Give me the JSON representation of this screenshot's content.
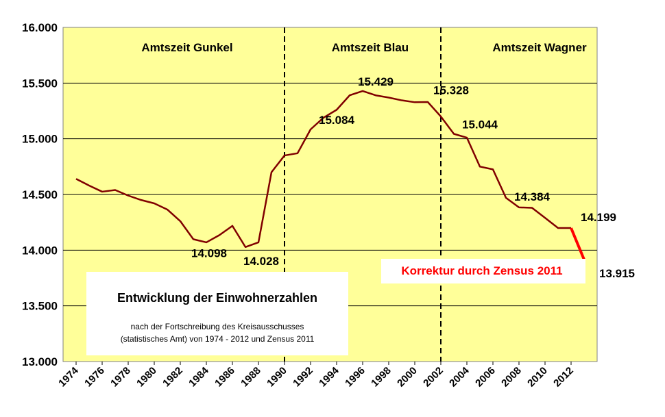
{
  "chart_data": {
    "type": "line",
    "title": "Entwicklung der Einwohnerzahlen",
    "subtitle_lines": [
      "nach der Fortschreibung des Kreisausschusses",
      "(statistisches Amt) von 1974 - 2012 und Zensus 2011"
    ],
    "xlabel": "",
    "ylabel": "",
    "ylim": [
      13000,
      16000
    ],
    "xlim": [
      1973,
      2014
    ],
    "y_ticks": [
      13000,
      13500,
      14000,
      14500,
      15000,
      15500,
      16000
    ],
    "y_tick_labels": [
      "13.000",
      "13.500",
      "14.000",
      "14.500",
      "15.000",
      "15.500",
      "16.000"
    ],
    "x_ticks": [
      1974,
      1976,
      1978,
      1980,
      1982,
      1984,
      1986,
      1988,
      1990,
      1992,
      1994,
      1996,
      1998,
      2000,
      2002,
      2004,
      2006,
      2008,
      2010,
      2012
    ],
    "x_tick_labels": [
      "1974",
      "1976",
      "1978",
      "1980",
      "1982",
      "1984",
      "1986",
      "1988",
      "1990",
      "1992",
      "1994",
      "1996",
      "1998",
      "2000",
      "2002",
      "2004",
      "2006",
      "2008",
      "2010",
      "2012"
    ],
    "grid": "horizontal",
    "plot_background": "#ffff99",
    "series": [
      {
        "color": "#800000",
        "x": [
          1974,
          1975,
          1976,
          1977,
          1978,
          1979,
          1980,
          1981,
          1982,
          1983,
          1984,
          1985,
          1986,
          1987,
          1988,
          1989,
          1990,
          1991,
          1992,
          1993,
          1994,
          1995,
          1996,
          1997,
          1998,
          1999,
          2000,
          2001,
          2002,
          2003,
          2004,
          2005,
          2006,
          2007,
          2008,
          2009,
          2010,
          2011,
          2012,
          2013
        ],
        "y": [
          14640,
          14580,
          14525,
          14540,
          14490,
          14450,
          14420,
          14365,
          14260,
          14098,
          14070,
          14135,
          14218,
          14028,
          14070,
          14700,
          14850,
          14870,
          15084,
          15190,
          15260,
          15390,
          15429,
          15390,
          15370,
          15345,
          15328,
          15330,
          15200,
          15044,
          15010,
          14750,
          14725,
          14470,
          14384,
          14380,
          14290,
          14199,
          14199,
          null
        ]
      },
      {
        "color": "#ff0000",
        "x": [
          2012,
          2013
        ],
        "y": [
          14199,
          13915
        ]
      }
    ],
    "data_labels": [
      {
        "text": "14.098",
        "x": 1984,
        "y": 14098,
        "color": "#000000"
      },
      {
        "text": "14.028",
        "x": 1988,
        "y": 14028,
        "color": "#000000"
      },
      {
        "text": "15.084",
        "x": 1994,
        "y": 15084,
        "color": "#000000"
      },
      {
        "text": "15.429",
        "x": 1997,
        "y": 15429,
        "color": "#000000"
      },
      {
        "text": "15.328",
        "x": 2001,
        "y": 15328,
        "color": "#000000"
      },
      {
        "text": "15.044",
        "x": 2003,
        "y": 15044,
        "color": "#000000"
      },
      {
        "text": "14.384",
        "x": 2009,
        "y": 14384,
        "color": "#000000"
      },
      {
        "text": "14.199",
        "x": 2012,
        "y": 14199,
        "color": "#000000"
      },
      {
        "text": "13.915",
        "x": 2013,
        "y": 13915,
        "color": "#ff0000"
      }
    ],
    "term_dividers": [
      1990,
      2002
    ],
    "term_labels": [
      "Amtszeit Gunkel",
      "Amtszeit Blau",
      "Amtszeit Wagner"
    ],
    "annotation": {
      "text": "Korrektur durch Zensus 2011",
      "color": "#ff0000"
    }
  }
}
